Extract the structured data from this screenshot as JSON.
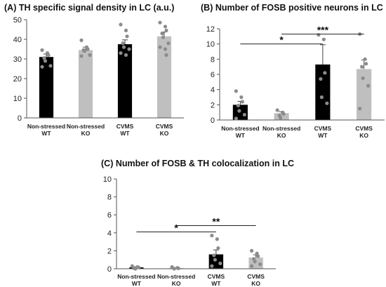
{
  "chart_data": [
    {
      "id": "A",
      "type": "bar",
      "title": "(A) TH specific signal density in LC (a.u.)",
      "categories": [
        {
          "line1": "Non-stressed",
          "line2": "WT"
        },
        {
          "line1": "Non-stressed",
          "line2": "KO"
        },
        {
          "line1": "CVMS",
          "line2": "WT"
        },
        {
          "line1": "CVMS",
          "line2": "KO"
        }
      ],
      "values": [
        31,
        34.5,
        37.5,
        41.5
      ],
      "errors": [
        1.5,
        1.5,
        2.2,
        2.2
      ],
      "points": [
        [
          34.5,
          33,
          32,
          30.5,
          29,
          26.5,
          26
        ],
        [
          39.5,
          36,
          35,
          34.5,
          34,
          32,
          31.5
        ],
        [
          47.5,
          44.5,
          41.5,
          38,
          36,
          35,
          33,
          32
        ],
        [
          48.5,
          46.5,
          44.5,
          43,
          41,
          38,
          36,
          35,
          32
        ]
      ],
      "bar_colors": [
        "#000000",
        "#bfbfbf",
        "#000000",
        "#bfbfbf"
      ],
      "ylim": [
        0,
        50
      ],
      "yticks": [
        0,
        10,
        20,
        30,
        40,
        50
      ],
      "ytick_labels": [
        "0",
        "10",
        "20",
        "30",
        "40",
        "50"
      ],
      "significance": []
    },
    {
      "id": "B",
      "type": "bar",
      "title": "(B) Number of FOSB positive neurons in LC",
      "categories": [
        {
          "line1": "Non-stressed",
          "line2": "WT"
        },
        {
          "line1": "Non-stressed",
          "line2": "KO"
        },
        {
          "line1": "CVMS",
          "line2": "WT"
        },
        {
          "line1": "CVMS",
          "line2": "KO"
        }
      ],
      "values": [
        2.0,
        0.9,
        7.3,
        6.7
      ],
      "errors": [
        0.45,
        0.2,
        2.6,
        1.2
      ],
      "points": [
        [
          3.8,
          3.0,
          2.4,
          1.9,
          1.2,
          0.7,
          0.2
        ],
        [
          1.3,
          1.0,
          0.8,
          0.6,
          0.3
        ],
        [
          11.2,
          10.6,
          6.2,
          5.4,
          3.0,
          2.2
        ],
        [
          11.3,
          8.0,
          7.4,
          7.0,
          5.5,
          4.5,
          1.5
        ]
      ],
      "bar_colors": [
        "#000000",
        "#bfbfbf",
        "#000000",
        "#bfbfbf"
      ],
      "ylim": [
        0,
        12
      ],
      "yticks": [
        0,
        2,
        4,
        6,
        8,
        10,
        12
      ],
      "ytick_labels": [
        "0",
        "2",
        "4",
        "6",
        "8",
        "10",
        "12"
      ],
      "significance": [
        {
          "from": 0,
          "to": 2,
          "y": 10.0,
          "label": "*"
        },
        {
          "from": 1,
          "to": 3,
          "y": 11.3,
          "label": "***"
        }
      ]
    },
    {
      "id": "C",
      "type": "bar",
      "title": "(C) Number of FOSB & TH colocalization in LC",
      "categories": [
        {
          "line1": "Non-stressed",
          "line2": "WT"
        },
        {
          "line1": "Non-stressed",
          "line2": "KO"
        },
        {
          "line1": "CVMS",
          "line2": "WT"
        },
        {
          "line1": "CVMS",
          "line2": "KO"
        }
      ],
      "values": [
        0.15,
        0.08,
        1.6,
        1.25
      ],
      "errors": [
        0.07,
        0.05,
        0.5,
        0.3
      ],
      "points": [
        [
          0.3,
          0.2,
          0.15,
          0.05,
          0.0
        ],
        [
          0.2,
          0.1,
          0.05,
          0.0
        ],
        [
          3.7,
          3.3,
          2.3,
          1.5,
          1.0,
          0.6,
          0.3
        ],
        [
          2.0,
          1.7,
          1.4,
          1.1,
          0.8,
          0.5,
          0.3
        ]
      ],
      "bar_colors": [
        "#000000",
        "#bfbfbf",
        "#000000",
        "#bfbfbf"
      ],
      "ylim": [
        0,
        10
      ],
      "yticks": [
        0,
        2,
        4,
        6,
        8,
        10
      ],
      "ytick_labels": [
        "0",
        "2",
        "4",
        "6",
        "8",
        "10"
      ],
      "significance": [
        {
          "from": 0,
          "to": 2,
          "y": 4.1,
          "label": "*"
        },
        {
          "from": 1,
          "to": 3,
          "y": 4.8,
          "label": "**"
        }
      ]
    }
  ]
}
